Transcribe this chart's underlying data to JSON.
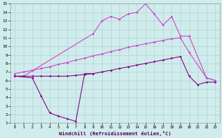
{
  "series1_x": [
    0,
    2,
    3,
    4,
    5,
    6,
    7,
    8,
    9
  ],
  "series1_y": [
    6.5,
    6.3,
    4.2,
    2.2,
    1.8,
    1.5,
    1.2,
    6.8,
    6.8
  ],
  "series2_x": [
    0,
    1,
    9,
    10,
    11,
    12,
    13,
    14,
    15,
    16,
    17,
    18,
    19,
    20,
    22,
    23
  ],
  "series2_y": [
    6.5,
    6.5,
    11.5,
    13.0,
    13.5,
    13.2,
    13.8,
    14.0,
    15.0,
    13.8,
    12.5,
    13.5,
    11.2,
    11.2,
    6.3,
    6.0
  ],
  "series3_x": [
    0,
    1,
    2,
    3,
    4,
    5,
    6,
    7,
    8,
    9,
    10,
    11,
    12,
    13,
    14,
    15,
    16,
    17,
    18,
    19,
    20,
    22,
    23
  ],
  "series3_y": [
    6.8,
    7.0,
    7.2,
    7.4,
    7.6,
    7.9,
    8.1,
    8.4,
    8.6,
    8.9,
    9.1,
    9.4,
    9.6,
    9.9,
    10.1,
    10.3,
    10.5,
    10.7,
    10.9,
    11.0,
    9.3,
    6.3,
    6.0
  ],
  "series4_x": [
    0,
    1,
    2,
    3,
    4,
    5,
    6,
    7,
    8,
    9,
    10,
    11,
    12,
    13,
    14,
    15,
    16,
    17,
    18,
    19,
    20,
    21,
    22,
    23
  ],
  "series4_y": [
    6.5,
    6.5,
    6.5,
    6.5,
    6.5,
    6.5,
    6.5,
    6.6,
    6.7,
    6.8,
    7.0,
    7.2,
    7.4,
    7.6,
    7.8,
    8.0,
    8.2,
    8.4,
    8.6,
    8.8,
    6.5,
    5.5,
    5.8,
    5.8
  ],
  "color_dark": "#880088",
  "color_light": "#cc44cc",
  "bg_color": "#d0ecec",
  "grid_color": "#aacccc",
  "xlabel": "Windchill (Refroidissement éolien,°C)",
  "xlim": [
    -0.5,
    23.5
  ],
  "ylim": [
    1,
    15
  ],
  "yticks": [
    1,
    2,
    3,
    4,
    5,
    6,
    7,
    8,
    9,
    10,
    11,
    12,
    13,
    14,
    15
  ],
  "xticks": [
    0,
    1,
    2,
    3,
    4,
    5,
    6,
    7,
    8,
    9,
    10,
    11,
    12,
    13,
    14,
    15,
    16,
    17,
    18,
    19,
    20,
    21,
    22,
    23
  ]
}
